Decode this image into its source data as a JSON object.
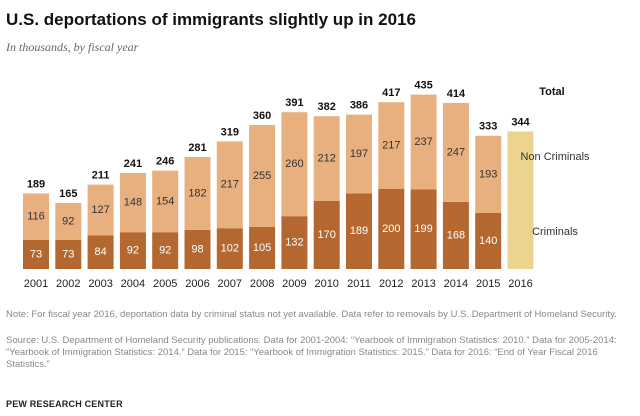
{
  "chart_data": {
    "type": "stacked-bar",
    "title": "U.S. deportations of immigrants slightly up in 2016",
    "subtitle": "In thousands, by fiscal year",
    "categories": [
      "2001",
      "2002",
      "2003",
      "2004",
      "2005",
      "2006",
      "2007",
      "2008",
      "2009",
      "2010",
      "2011",
      "2012",
      "2013",
      "2014",
      "2015",
      "2016"
    ],
    "series": [
      {
        "name": "Criminals",
        "color": "#b4682f",
        "values": [
          73,
          73,
          84,
          92,
          92,
          98,
          102,
          105,
          132,
          170,
          189,
          200,
          199,
          168,
          140,
          null
        ]
      },
      {
        "name": "Non Criminals",
        "color": "#e8b07f",
        "values": [
          116,
          92,
          127,
          148,
          154,
          182,
          217,
          255,
          260,
          212,
          197,
          217,
          237,
          247,
          193,
          null
        ]
      }
    ],
    "totals": {
      "name": "Total",
      "color": "#ecd48f",
      "values": [
        189,
        165,
        211,
        241,
        246,
        281,
        319,
        360,
        391,
        382,
        386,
        417,
        435,
        414,
        333,
        344
      ]
    },
    "note": "Note: For fiscal year 2016, deportation data by criminal status not yet available. Data refer to removals by U.S. Department of Homeland Security.",
    "source": "Source: U.S. Department of Homeland Security publications. Data for 2001-2004: “Yearbook of Immigration Statistics: 2010.” Data for 2005-2014: “Yearbook of Immigration Statistics: 2014.” Data for 2015: “Yearbook of Immigration Statistics: 2015.” Data for 2016: “End of Year Fiscal 2016 Statistics.”",
    "footer": "PEW RESEARCH CENTER"
  }
}
